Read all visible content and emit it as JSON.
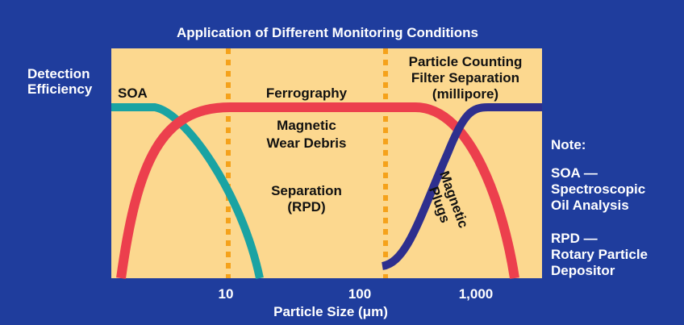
{
  "title": "Application of Different Monitoring Conditions",
  "y_axis_label": [
    "Detection",
    "Efficiency"
  ],
  "x_axis_label": "Particle Size (μm)",
  "x_ticks": [
    "10",
    "100",
    "1,000"
  ],
  "regions": {
    "soa": "SOA",
    "ferrography": "Ferrography",
    "magnetic": [
      "Magnetic",
      "Wear Debris"
    ],
    "separation": [
      "Separation",
      "(RPD)"
    ],
    "particle_counting": [
      "Particle Counting",
      "Filter Separation",
      "(millipore)"
    ],
    "plugs": [
      "Magnetic",
      "Plugs"
    ]
  },
  "notes": {
    "heading": "Note:",
    "soa": [
      "SOA —",
      "Spectroscopic",
      "Oil Analysis"
    ],
    "rpd": [
      "RPD —",
      "Rotary Particle",
      "Depositor"
    ]
  }
}
